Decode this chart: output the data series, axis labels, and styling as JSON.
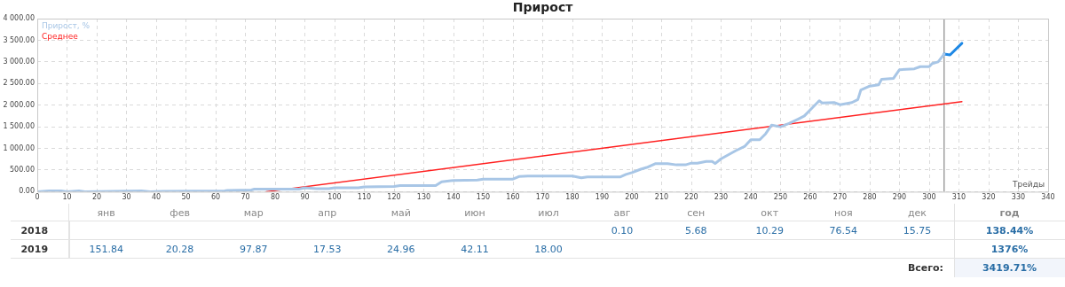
{
  "chart_data": [
    {
      "type": "line",
      "title": "Прирост",
      "xlabel": "Трейды",
      "xlim": [
        0,
        340
      ],
      "xticks": [
        0,
        10,
        20,
        30,
        40,
        50,
        60,
        70,
        80,
        90,
        100,
        110,
        120,
        130,
        140,
        150,
        160,
        170,
        180,
        190,
        200,
        210,
        220,
        230,
        240,
        250,
        260,
        270,
        280,
        290,
        300,
        310,
        320,
        330,
        340
      ],
      "ylim": [
        0,
        4000
      ],
      "yticks": [
        {
          "value": 0,
          "label": "0.00"
        },
        {
          "value": 500,
          "label": "500.00"
        },
        {
          "value": 1000,
          "label": "1 000.00"
        },
        {
          "value": 1500,
          "label": "1 500.00"
        },
        {
          "value": 2000,
          "label": "2 000.00"
        },
        {
          "value": 2500,
          "label": "2 500.00"
        },
        {
          "value": 3000,
          "label": "3 000.00"
        },
        {
          "value": 3500,
          "label": "3 500.00"
        },
        {
          "value": 4000,
          "label": "4 000.00"
        }
      ],
      "grid": true,
      "legend": "top left",
      "marker": "none",
      "line_style": "solid",
      "ref_lines": [
        {
          "axis": "x",
          "value": 305,
          "color": "#a0a0a0"
        }
      ],
      "series": [
        {
          "name": "Прирост, %",
          "color": "#a8c6e6",
          "x": [
            0,
            4,
            8,
            10,
            14,
            16,
            35,
            38,
            42,
            63,
            64,
            72,
            73,
            88,
            90,
            94,
            98,
            100,
            108,
            110,
            120,
            122,
            134,
            136,
            140,
            148,
            150,
            160,
            162,
            165,
            180,
            183,
            185,
            196,
            198,
            200,
            203,
            205,
            208,
            212,
            215,
            218,
            220,
            222,
            225,
            227,
            228,
            230,
            235,
            238,
            240,
            243,
            245,
            247,
            250,
            253,
            256,
            258,
            260,
            263,
            264,
            268,
            270,
            274,
            276,
            277,
            280,
            283,
            284,
            288,
            290,
            295,
            297,
            300,
            301,
            303,
            305
          ],
          "values": [
            0,
            20,
            20,
            0,
            20,
            0,
            20,
            0,
            10,
            20,
            30,
            40,
            60,
            60,
            90,
            70,
            70,
            90,
            90,
            110,
            120,
            140,
            140,
            230,
            260,
            270,
            290,
            290,
            350,
            360,
            360,
            320,
            340,
            340,
            400,
            440,
            520,
            560,
            650,
            650,
            620,
            620,
            660,
            660,
            700,
            700,
            650,
            760,
            950,
            1050,
            1200,
            1200,
            1340,
            1540,
            1500,
            1580,
            1680,
            1750,
            1890,
            2100,
            2050,
            2060,
            2010,
            2060,
            2130,
            2350,
            2440,
            2470,
            2600,
            2620,
            2820,
            2840,
            2890,
            2890,
            2960,
            3000,
            3180
          ]
        },
        {
          "color": "#1e88e5",
          "x": [
            305,
            307,
            311
          ],
          "values": [
            3180,
            3160,
            3430
          ]
        },
        {
          "name": "Среднее",
          "color": "#ff2020",
          "x": [
            77,
            311
          ],
          "values": [
            0,
            2080
          ]
        }
      ]
    },
    {
      "type": "heatmap",
      "categories": [
        "янв",
        "фев",
        "мар",
        "апр",
        "май",
        "июн",
        "июл",
        "авг",
        "сен",
        "окт",
        "ноя",
        "дек",
        "год"
      ],
      "y_categories": [
        "2018",
        "2019"
      ],
      "cells": [
        [
          null,
          null,
          null,
          null,
          null,
          null,
          null,
          0.1,
          5.68,
          10.29,
          76.54,
          15.75,
          138.44
        ],
        [
          151.84,
          20.28,
          97.87,
          17.53,
          24.96,
          42.11,
          18.0,
          null,
          null,
          null,
          null,
          null,
          1376
        ]
      ],
      "cell_labels": [
        [
          null,
          null,
          null,
          null,
          null,
          null,
          null,
          "0.10",
          "5.68",
          "10.29",
          "76.54",
          "15.75",
          "138.44%"
        ],
        [
          "151.84",
          "20.28",
          "97.87",
          "17.53",
          "24.96",
          "42.11",
          "18.00",
          null,
          null,
          null,
          null,
          null,
          "1376%"
        ]
      ],
      "annotations": [
        "Всего: 3419.71%"
      ]
    }
  ]
}
